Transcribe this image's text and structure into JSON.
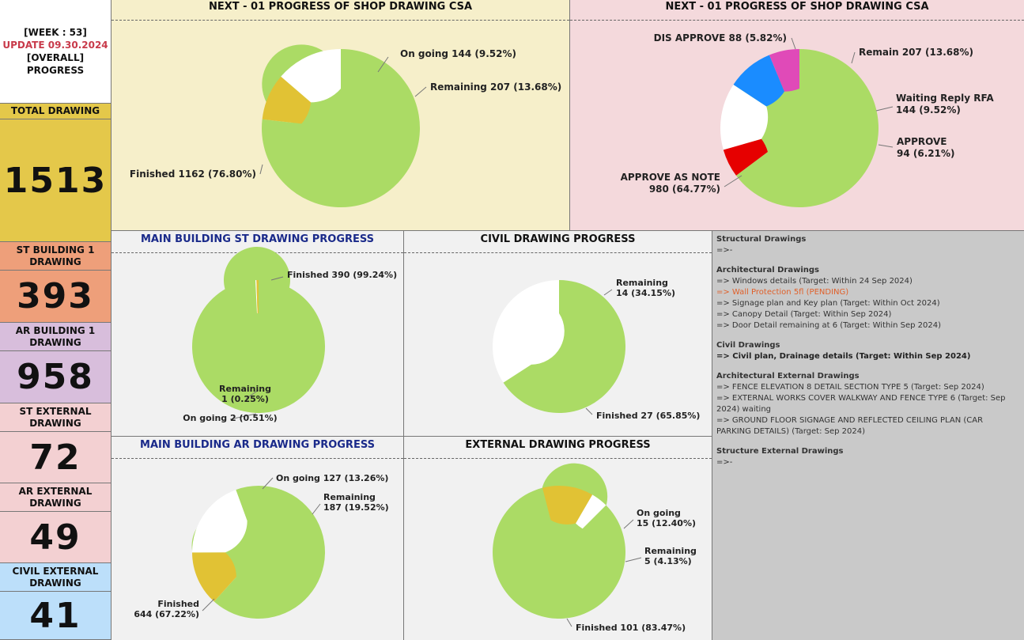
{
  "sidebar": {
    "week": "[WEEK : 53]",
    "update": "UPDATE 09.30.2024",
    "overall": "[OVERALL]",
    "progress": "PROGRESS",
    "blocks": [
      {
        "label_lines": [
          "TOTAL DRAWING"
        ],
        "value": "1513",
        "color": "#e4c84a"
      },
      {
        "label_lines": [
          "ST BUILDING 1",
          "DRAWING"
        ],
        "value": "393",
        "color": "#ee9f7a"
      },
      {
        "label_lines": [
          "AR BUILDING 1",
          "DRAWING"
        ],
        "value": "958",
        "color": "#d8bedc"
      },
      {
        "label_lines": [
          "ST EXTERNAL",
          "DRAWING"
        ],
        "value": "72",
        "color": "#f3d0d2"
      },
      {
        "label_lines": [
          "AR EXTERNAL",
          "DRAWING"
        ],
        "value": "49",
        "color": "#f3d0d2"
      },
      {
        "label_lines": [
          "CIVIL EXTERNAL",
          "DRAWING"
        ],
        "value": "41",
        "color": "#bcdffa"
      }
    ]
  },
  "chart_data": [
    {
      "type": "pie",
      "title": "NEXT - 01 PROGRESS OF SHOP DRAWING CSA",
      "slices": [
        {
          "label": "On going",
          "value": 144,
          "pct": "9.52%",
          "color": "#e1c234"
        },
        {
          "label": "Remaining",
          "value": 207,
          "pct": "13.68%",
          "color": "#ffffff"
        },
        {
          "label": "Finished",
          "value": 1162,
          "pct": "76.80%",
          "color": "#abdb65"
        }
      ]
    },
    {
      "type": "pie",
      "title": "NEXT - 01 PROGRESS OF SHOP DRAWING CSA",
      "slices": [
        {
          "label": "DIS APPROVE",
          "value": 88,
          "pct": "5.82%",
          "color": "#e60000"
        },
        {
          "label": "Remain",
          "value": 207,
          "pct": "13.68%",
          "color": "#ffffff"
        },
        {
          "label": "Waiting Reply RFA",
          "value": 144,
          "pct": "9.52%",
          "color": "#1a8cff"
        },
        {
          "label": "APPROVE",
          "value": 94,
          "pct": "6.21%",
          "color": "#e04ab8"
        },
        {
          "label": "APPROVE AS NOTE",
          "value": 980,
          "pct": "64.77%",
          "color": "#abdb65"
        }
      ]
    },
    {
      "type": "pie",
      "title": "MAIN BUILDING ST DRAWING PROGRESS",
      "slices": [
        {
          "label": "Finished",
          "value": 390,
          "pct": "99.24%",
          "color": "#abdb65"
        },
        {
          "label": "Remaining",
          "value": 1,
          "pct": "0.25%",
          "color": "#ffffff"
        },
        {
          "label": "On going",
          "value": 2,
          "pct": "0.51%",
          "color": "#e1c234"
        }
      ]
    },
    {
      "type": "pie",
      "title": "CIVIL DRAWING PROGRESS",
      "slices": [
        {
          "label": "Remaining",
          "value": 14,
          "pct": "34.15%",
          "color": "#ffffff"
        },
        {
          "label": "Finished",
          "value": 27,
          "pct": "65.85%",
          "color": "#abdb65"
        }
      ]
    },
    {
      "type": "pie",
      "title": "MAIN BUILDING AR DRAWING PROGRESS",
      "slices": [
        {
          "label": "On going",
          "value": 127,
          "pct": "13.26%",
          "color": "#e1c234"
        },
        {
          "label": "Remaining",
          "value": 187,
          "pct": "19.52%",
          "color": "#ffffff"
        },
        {
          "label": "Finished",
          "value": 644,
          "pct": "67.22%",
          "color": "#abdb65"
        }
      ]
    },
    {
      "type": "pie",
      "title": "EXTERNAL DRAWING PROGRESS",
      "slices": [
        {
          "label": "On going",
          "value": 15,
          "pct": "12.40%",
          "color": "#e1c234"
        },
        {
          "label": "Remaining",
          "value": 5,
          "pct": "4.13%",
          "color": "#ffffff"
        },
        {
          "label": "Finished",
          "value": 101,
          "pct": "83.47%",
          "color": "#abdb65"
        }
      ]
    }
  ],
  "notes": [
    {
      "type": "h",
      "text": "Structural Drawings"
    },
    {
      "type": "t",
      "text": "=>-"
    },
    {
      "type": "gap"
    },
    {
      "type": "h",
      "text": "Architectural Drawings"
    },
    {
      "type": "t",
      "text": "=> Windows details  (Target: Within 24 Sep 2024)"
    },
    {
      "type": "t",
      "text": "=> Wall Protection 5fl (PENDING)",
      "color": "#e0602a"
    },
    {
      "type": "t",
      "text": "=> Signage plan and Key plan (Target: Within Oct 2024)"
    },
    {
      "type": "t",
      "text": "=> Canopy Detail (Target: Within Sep 2024)"
    },
    {
      "type": "t",
      "text": "=> Door Detail remaining at 6 (Target: Within Sep 2024)"
    },
    {
      "type": "gap"
    },
    {
      "type": "h",
      "text": "Civil Drawings"
    },
    {
      "type": "h",
      "text": "=> Civil plan, Drainage details (Target: Within Sep 2024)",
      "color": "#222"
    },
    {
      "type": "gap"
    },
    {
      "type": "h",
      "text": "Architectural External Drawings"
    },
    {
      "type": "t",
      "text": "=>  FENCE ELEVATION 8 DETAIL SECTION TYPE 5 (Target:  Sep 2024)"
    },
    {
      "type": "t",
      "text": "=>  EXTERNAL WORKS COVER WALKWAY AND FENCE TYPE 6 (Target:  Sep 2024) waiting"
    },
    {
      "type": "t",
      "text": "=>  GROUND FLOOR SIGNAGE AND REFLECTED CEILING PLAN  (CAR PARKING DETAILS)  (Target:  Sep 2024)"
    },
    {
      "type": "gap"
    },
    {
      "type": "h",
      "text": "Structure External Drawings"
    },
    {
      "type": "t",
      "text": "=>-"
    }
  ]
}
